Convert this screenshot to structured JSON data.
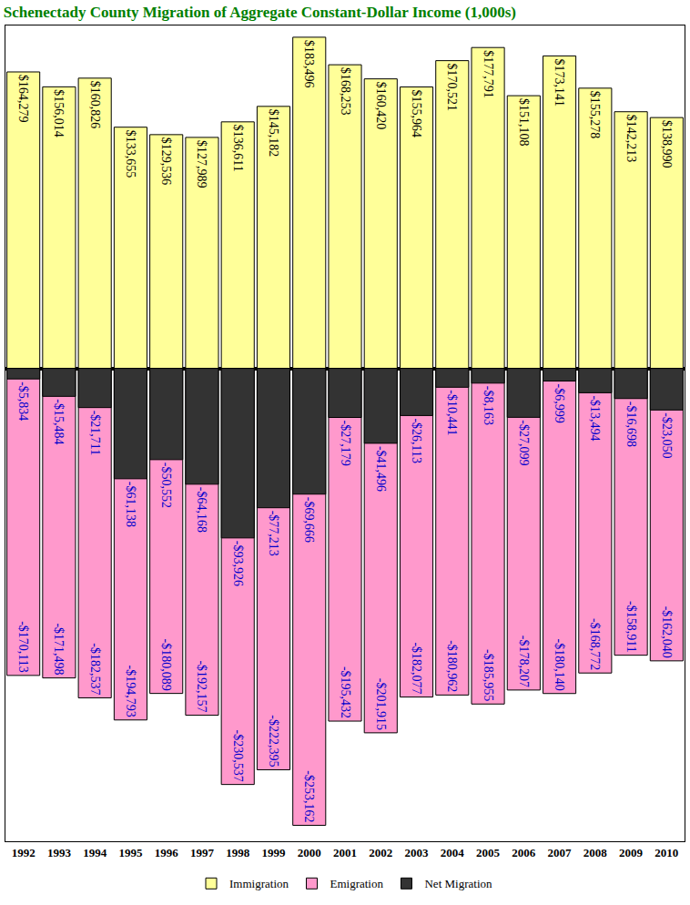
{
  "chart_data": {
    "type": "bar",
    "title": "Schenectady County Migration of Aggregate Constant-Dollar Income (1,000s)",
    "categories": [
      "1992",
      "1993",
      "1994",
      "1995",
      "1996",
      "1997",
      "1998",
      "1999",
      "2000",
      "2001",
      "2002",
      "2003",
      "2004",
      "2005",
      "2006",
      "2007",
      "2008",
      "2009",
      "2010"
    ],
    "series": [
      {
        "name": "Immigration",
        "color": "#ffff99",
        "values": [
          164279,
          156014,
          160826,
          133655,
          129536,
          127989,
          136611,
          145182,
          183496,
          168253,
          160420,
          155964,
          170521,
          177791,
          151108,
          173141,
          155278,
          142213,
          138990
        ],
        "value_labels": [
          "$164,279",
          "$156,014",
          "$160,826",
          "$133,655",
          "$129,536",
          "$127,989",
          "$136,611",
          "$145,182",
          "$183,496",
          "$168,253",
          "$160,420",
          "$155,964",
          "$170,521",
          "$177,791",
          "$151,108",
          "$173,141",
          "$155,278",
          "$142,213",
          "$138,990"
        ]
      },
      {
        "name": "Emigration",
        "color": "#ff99cc",
        "values": [
          -170113,
          -171498,
          -182537,
          -194793,
          -180089,
          -192157,
          -230537,
          -222395,
          -253162,
          -195432,
          -201915,
          -182077,
          -180962,
          -185955,
          -178207,
          -180140,
          -168772,
          -158911,
          -162040
        ],
        "value_labels": [
          "-$170,113",
          "-$171,498",
          "-$182,537",
          "-$194,793",
          "-$180,089",
          "-$192,157",
          "-$230,537",
          "-$222,395",
          "-$253,162",
          "-$195,432",
          "-$201,915",
          "-$182,077",
          "-$180,962",
          "-$185,955",
          "-$178,207",
          "-$180,140",
          "-$168,772",
          "-$158,911",
          "-$162,040"
        ]
      },
      {
        "name": "Net Migration",
        "color": "#333333",
        "values": [
          -5834,
          -15484,
          -21711,
          -61138,
          -50552,
          -64168,
          -93926,
          -77213,
          -69666,
          -27179,
          -41496,
          -26113,
          -10441,
          -8163,
          -27099,
          -6999,
          -13494,
          -16698,
          -23050
        ],
        "value_labels": [
          "-$5,834",
          "-$15,484",
          "-$21,711",
          "-$61,138",
          "-$50,552",
          "-$64,168",
          "-$93,926",
          "-$77,213",
          "-$69,666",
          "-$27,179",
          "-$41,496",
          "-$26,113",
          "-$10,441",
          "-$8,163",
          "-$27,099",
          "-$6,999",
          "-$13,494",
          "-$16,698",
          "-$23,050"
        ]
      }
    ],
    "ylim": [
      -262000,
      190000
    ],
    "data_labels": true,
    "tick_labels": "x",
    "grid": false,
    "legend": "bottom"
  }
}
